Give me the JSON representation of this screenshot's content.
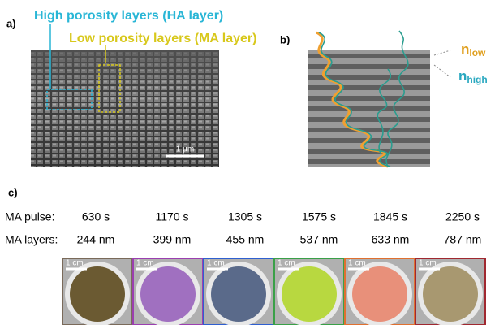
{
  "panel_a": {
    "label": "a)",
    "ha_caption": "High porosity layers (HA layer)",
    "ma_caption": "Low porosity layers (MA layer)",
    "scale_bar": "1 µm"
  },
  "panel_b": {
    "label": "b)",
    "n_low": {
      "symbol": "n",
      "subscript": "low"
    },
    "n_high": {
      "symbol": "n",
      "subscript": "high"
    }
  },
  "panel_c": {
    "label": "c)",
    "rows": [
      {
        "label": "MA pulse:",
        "values": [
          "630 s",
          "1170 s",
          "1305 s",
          "1575 s",
          "1845 s",
          "2250 s"
        ]
      },
      {
        "label": "MA layers:",
        "values": [
          "244 nm",
          "399 nm",
          "455 nm",
          "537 nm",
          "633 nm",
          "787 nm"
        ]
      }
    ],
    "scale_labels": [
      "1 cm",
      "1 cm",
      "1 cm",
      "1 cm",
      "1 cm",
      "1 cm"
    ]
  }
}
